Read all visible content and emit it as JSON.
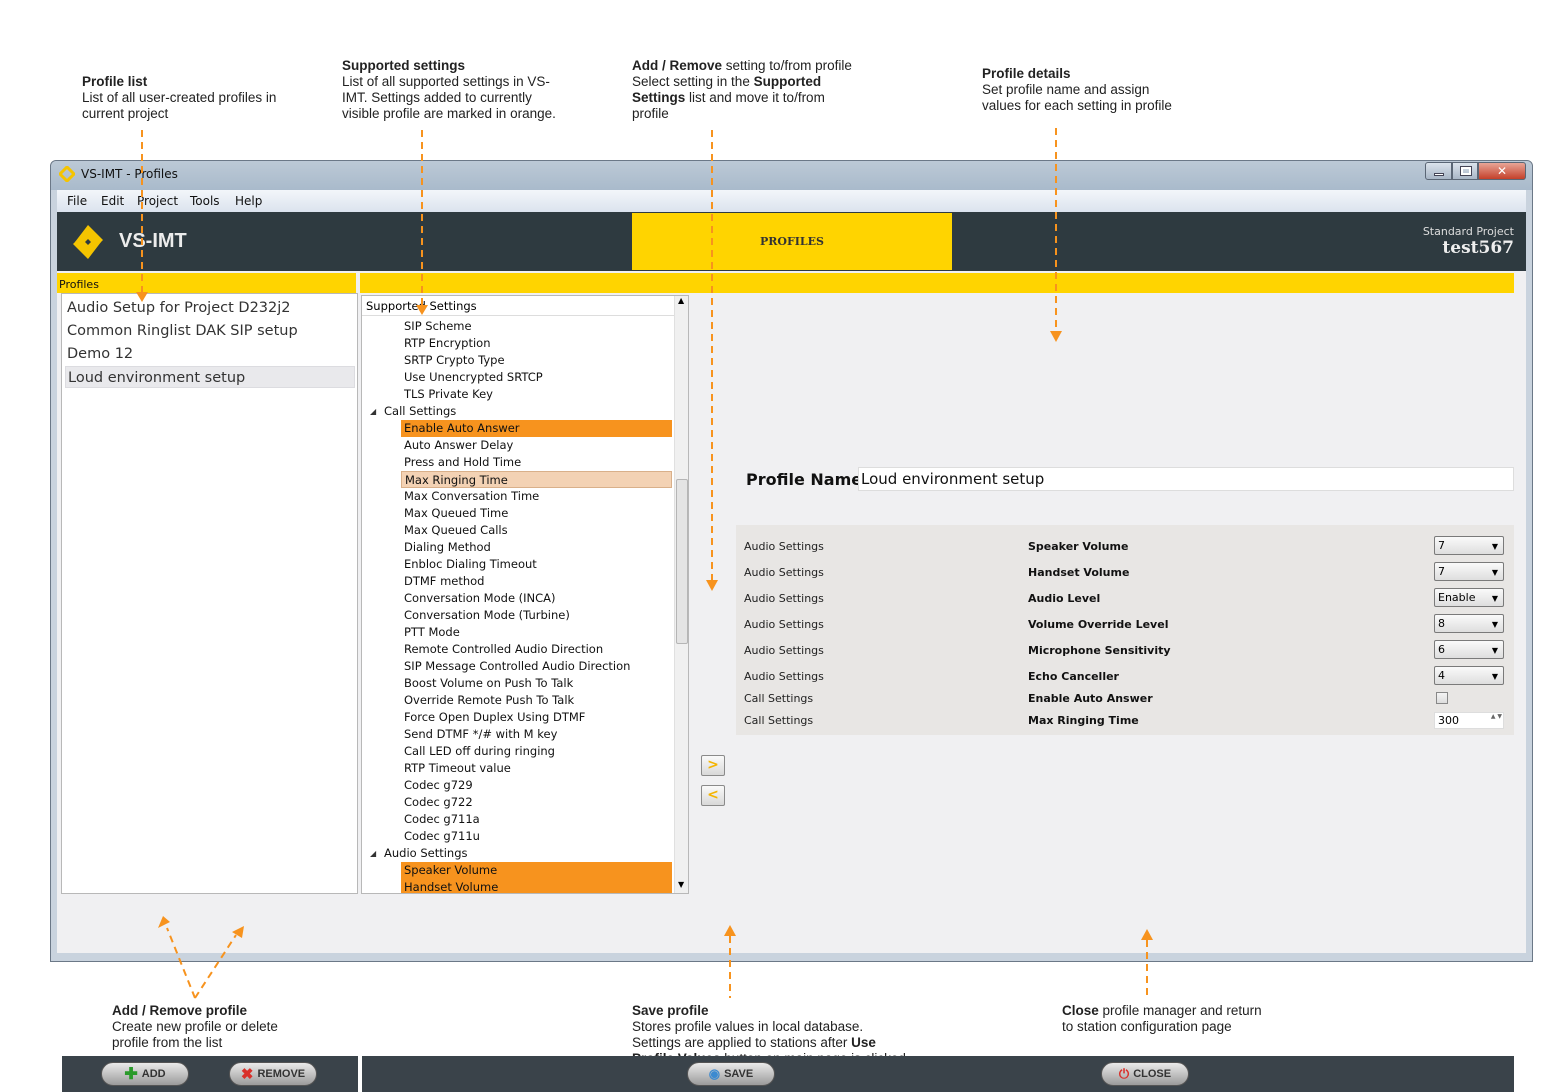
{
  "annotations": {
    "profile_list": {
      "title": "Profile list",
      "text": [
        "List of all user-created profiles in",
        "current project"
      ]
    },
    "supported_settings": {
      "title": "Supported settings",
      "text": [
        "List of all supported settings in VS-",
        "IMT. Settings added to currently",
        "visible profile are marked in orange."
      ]
    },
    "add_remove_setting": {
      "title": "Add / Remove",
      "title_rest": " setting to/from profile",
      "line2_pre": "Select setting in the ",
      "line2_bold": "Supported",
      "line3_bold": "Settings",
      "line3_rest": " list and move it to/from",
      "line4": "profile"
    },
    "profile_details": {
      "title": "Profile details",
      "text": [
        "Set profile name and assign",
        "values for each setting in profile"
      ]
    },
    "add_remove_profile": {
      "title": "Add / Remove profile",
      "text": [
        "Create new profile or delete",
        "profile from the list"
      ]
    },
    "save_profile": {
      "title": "Save profile",
      "line1": "Stores profile values in local database.",
      "line2_pre": "Settings are applied to stations after ",
      "line2_bold": "Use",
      "line3_bold": "Profile Values",
      "line3_rest": " button on main page is clicked"
    },
    "close": {
      "title": "Close",
      "title_rest": " profile manager and return",
      "line2": "to station configuration page"
    },
    "color": "#f7931e"
  },
  "window": {
    "title": "VS-IMT - Profiles"
  },
  "menu": [
    "File",
    "Edit",
    "Project",
    "Tools",
    "Help"
  ],
  "header": {
    "brand": "VS-IMT",
    "tab": "PROFILES",
    "project_label": "Standard Project",
    "project_name": "test567"
  },
  "profiles": {
    "label": "Profiles",
    "items": [
      "Audio Setup for Project D232j2",
      "Common Ringlist DAK SIP setup",
      "Demo 12",
      "Loud environment setup"
    ],
    "selected_index": 3,
    "add_label": "ADD",
    "remove_label": "REMOVE"
  },
  "supported": {
    "header": "Supported Settings",
    "items": [
      {
        "label": "SIP Scheme"
      },
      {
        "label": "RTP Encryption"
      },
      {
        "label": "SRTP Crypto Type"
      },
      {
        "label": "Use Unencrypted SRTCP"
      },
      {
        "label": "TLS Private Key"
      },
      {
        "label": "Call Settings",
        "group": true
      },
      {
        "label": "Enable Auto Answer",
        "state": "added"
      },
      {
        "label": "Auto Answer Delay"
      },
      {
        "label": "Press and Hold Time"
      },
      {
        "label": "Max Ringing Time",
        "state": "picked"
      },
      {
        "label": "Max Conversation Time"
      },
      {
        "label": "Max Queued Time"
      },
      {
        "label": "Max Queued Calls"
      },
      {
        "label": "Dialing Method"
      },
      {
        "label": "Enbloc Dialing Timeout"
      },
      {
        "label": "DTMF method"
      },
      {
        "label": "Conversation Mode (INCA)"
      },
      {
        "label": "Conversation Mode (Turbine)"
      },
      {
        "label": "PTT Mode"
      },
      {
        "label": "Remote Controlled Audio Direction"
      },
      {
        "label": "SIP Message Controlled Audio Direction"
      },
      {
        "label": "Boost Volume on Push To Talk"
      },
      {
        "label": "Override Remote Push To Talk"
      },
      {
        "label": "Force Open Duplex Using DTMF"
      },
      {
        "label": "Send DTMF */# with M key"
      },
      {
        "label": "Call LED off during ringing"
      },
      {
        "label": "RTP Timeout value"
      },
      {
        "label": "Codec g729"
      },
      {
        "label": "Codec g722"
      },
      {
        "label": "Codec g711a"
      },
      {
        "label": "Codec g711u"
      },
      {
        "label": "Audio Settings",
        "group": true
      },
      {
        "label": "Speaker Volume",
        "state": "added"
      },
      {
        "label": "Handset Volume",
        "state": "added"
      }
    ],
    "added_color": "#f7931e",
    "selected_color": "#f3d2b4"
  },
  "details": {
    "name_label": "Profile Name",
    "name_value": "Loud environment setup",
    "rows": [
      {
        "category": "Audio Settings",
        "name": "Speaker Volume",
        "type": "dropdown",
        "value": "7"
      },
      {
        "category": "Audio Settings",
        "name": "Handset Volume",
        "type": "dropdown",
        "value": "7"
      },
      {
        "category": "Audio Settings",
        "name": "Audio Level",
        "type": "dropdown",
        "value": "Enable"
      },
      {
        "category": "Audio Settings",
        "name": "Volume Override Level",
        "type": "dropdown",
        "value": "8"
      },
      {
        "category": "Audio Settings",
        "name": "Microphone Sensitivity",
        "type": "dropdown",
        "value": "6"
      },
      {
        "category": "Audio Settings",
        "name": "Echo Canceller",
        "type": "dropdown",
        "value": "4"
      },
      {
        "category": "Call Settings",
        "name": "Enable Auto Answer",
        "type": "checkbox",
        "checked": false
      },
      {
        "category": "Call Settings",
        "name": "Max Ringing Time",
        "type": "spinner",
        "value": "300"
      }
    ],
    "save_label": "SAVE",
    "close_label": "CLOSE"
  },
  "colors": {
    "accent": "#ffd400",
    "header_bg": "#2e3a40",
    "orange": "#f7931e"
  }
}
